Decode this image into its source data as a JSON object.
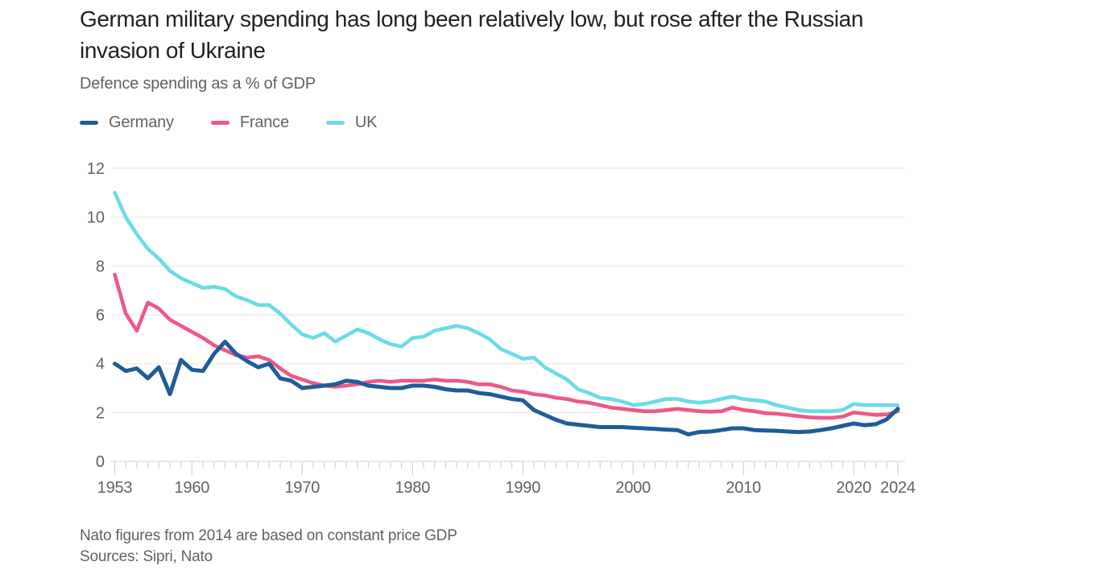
{
  "header": {
    "title": "German military spending has long been relatively low, but rose after the Russian invasion of Ukraine",
    "subtitle": "Defence spending as a % of GDP"
  },
  "legend": [
    {
      "label": "Germany",
      "color": "#1f5c99"
    },
    {
      "label": "France",
      "color": "#ed5887"
    },
    {
      "label": "UK",
      "color": "#6cdbe5"
    }
  ],
  "footer": {
    "note": "Nato figures from 2014 are based on constant price GDP",
    "sources": "Sources: Sipri, Nato"
  },
  "colors": {
    "germany": "#1f5c99",
    "france": "#ed5887",
    "uk": "#6cdbe5",
    "axis_text": "#66605c",
    "gridline": "#eeece7",
    "baseline": "#e3e0da",
    "tick": "#d9d5cf",
    "title_text": "#1d2025"
  },
  "chart_data": {
    "type": "line",
    "title": "German military spending has long been relatively low, but rose after the Russian invasion of Ukraine",
    "subtitle": "Defence spending as a % of GDP",
    "xlabel": "",
    "ylabel": "Defence spending as a % of GDP",
    "xlim": [
      1953,
      2024
    ],
    "ylim": [
      0,
      12
    ],
    "yticks": [
      0,
      2,
      4,
      6,
      8,
      10,
      12
    ],
    "xticks": [
      1953,
      1960,
      1970,
      1980,
      1990,
      2000,
      2010,
      2020,
      2024
    ],
    "grid": "horizontal",
    "legend_position": "top-left",
    "years": [
      1953,
      1954,
      1955,
      1956,
      1957,
      1958,
      1959,
      1960,
      1961,
      1962,
      1963,
      1964,
      1965,
      1966,
      1967,
      1968,
      1969,
      1970,
      1971,
      1972,
      1973,
      1974,
      1975,
      1976,
      1977,
      1978,
      1979,
      1980,
      1981,
      1982,
      1983,
      1984,
      1985,
      1986,
      1987,
      1988,
      1989,
      1990,
      1991,
      1992,
      1993,
      1994,
      1995,
      1996,
      1997,
      1998,
      1999,
      2000,
      2001,
      2002,
      2003,
      2004,
      2005,
      2006,
      2007,
      2008,
      2009,
      2010,
      2011,
      2012,
      2013,
      2014,
      2015,
      2016,
      2017,
      2018,
      2019,
      2020,
      2021,
      2022,
      2023,
      2024
    ],
    "series": [
      {
        "name": "Germany",
        "color": "#1f5c99",
        "values": [
          4.0,
          3.7,
          3.8,
          3.4,
          3.85,
          2.75,
          4.15,
          3.75,
          3.7,
          4.4,
          4.9,
          4.4,
          4.1,
          3.85,
          4.0,
          3.4,
          3.3,
          3.0,
          3.05,
          3.1,
          3.15,
          3.3,
          3.25,
          3.1,
          3.05,
          3.0,
          3.0,
          3.1,
          3.1,
          3.05,
          2.95,
          2.9,
          2.9,
          2.8,
          2.75,
          2.65,
          2.55,
          2.5,
          2.1,
          1.9,
          1.7,
          1.55,
          1.5,
          1.45,
          1.4,
          1.4,
          1.4,
          1.37,
          1.35,
          1.33,
          1.3,
          1.28,
          1.1,
          1.2,
          1.22,
          1.28,
          1.35,
          1.35,
          1.28,
          1.26,
          1.25,
          1.22,
          1.2,
          1.22,
          1.28,
          1.35,
          1.45,
          1.55,
          1.48,
          1.52,
          1.72,
          2.15
        ]
      },
      {
        "name": "France",
        "color": "#ed5887",
        "values": [
          7.65,
          6.05,
          5.35,
          6.5,
          6.25,
          5.8,
          5.55,
          5.3,
          5.05,
          4.75,
          4.55,
          4.35,
          4.25,
          4.3,
          4.15,
          3.8,
          3.5,
          3.35,
          3.2,
          3.1,
          3.05,
          3.1,
          3.15,
          3.25,
          3.3,
          3.25,
          3.3,
          3.3,
          3.3,
          3.35,
          3.3,
          3.3,
          3.25,
          3.15,
          3.15,
          3.05,
          2.9,
          2.85,
          2.75,
          2.7,
          2.6,
          2.55,
          2.45,
          2.4,
          2.3,
          2.2,
          2.15,
          2.1,
          2.05,
          2.05,
          2.1,
          2.15,
          2.1,
          2.05,
          2.03,
          2.05,
          2.2,
          2.1,
          2.05,
          1.97,
          1.95,
          1.9,
          1.85,
          1.8,
          1.78,
          1.78,
          1.83,
          2.0,
          1.95,
          1.9,
          1.92,
          2.05
        ]
      },
      {
        "name": "UK",
        "color": "#6cdbe5",
        "values": [
          11.0,
          10.0,
          9.3,
          8.7,
          8.3,
          7.8,
          7.5,
          7.3,
          7.1,
          7.15,
          7.05,
          6.75,
          6.6,
          6.4,
          6.4,
          6.05,
          5.6,
          5.2,
          5.05,
          5.25,
          4.9,
          5.15,
          5.4,
          5.25,
          5.0,
          4.8,
          4.7,
          5.05,
          5.1,
          5.35,
          5.45,
          5.55,
          5.45,
          5.25,
          5.0,
          4.6,
          4.4,
          4.2,
          4.25,
          3.85,
          3.6,
          3.35,
          2.95,
          2.8,
          2.6,
          2.55,
          2.45,
          2.3,
          2.35,
          2.45,
          2.55,
          2.55,
          2.45,
          2.4,
          2.45,
          2.55,
          2.65,
          2.55,
          2.5,
          2.45,
          2.3,
          2.2,
          2.1,
          2.05,
          2.05,
          2.05,
          2.1,
          2.35,
          2.3,
          2.3,
          2.3,
          2.3
        ]
      }
    ]
  }
}
